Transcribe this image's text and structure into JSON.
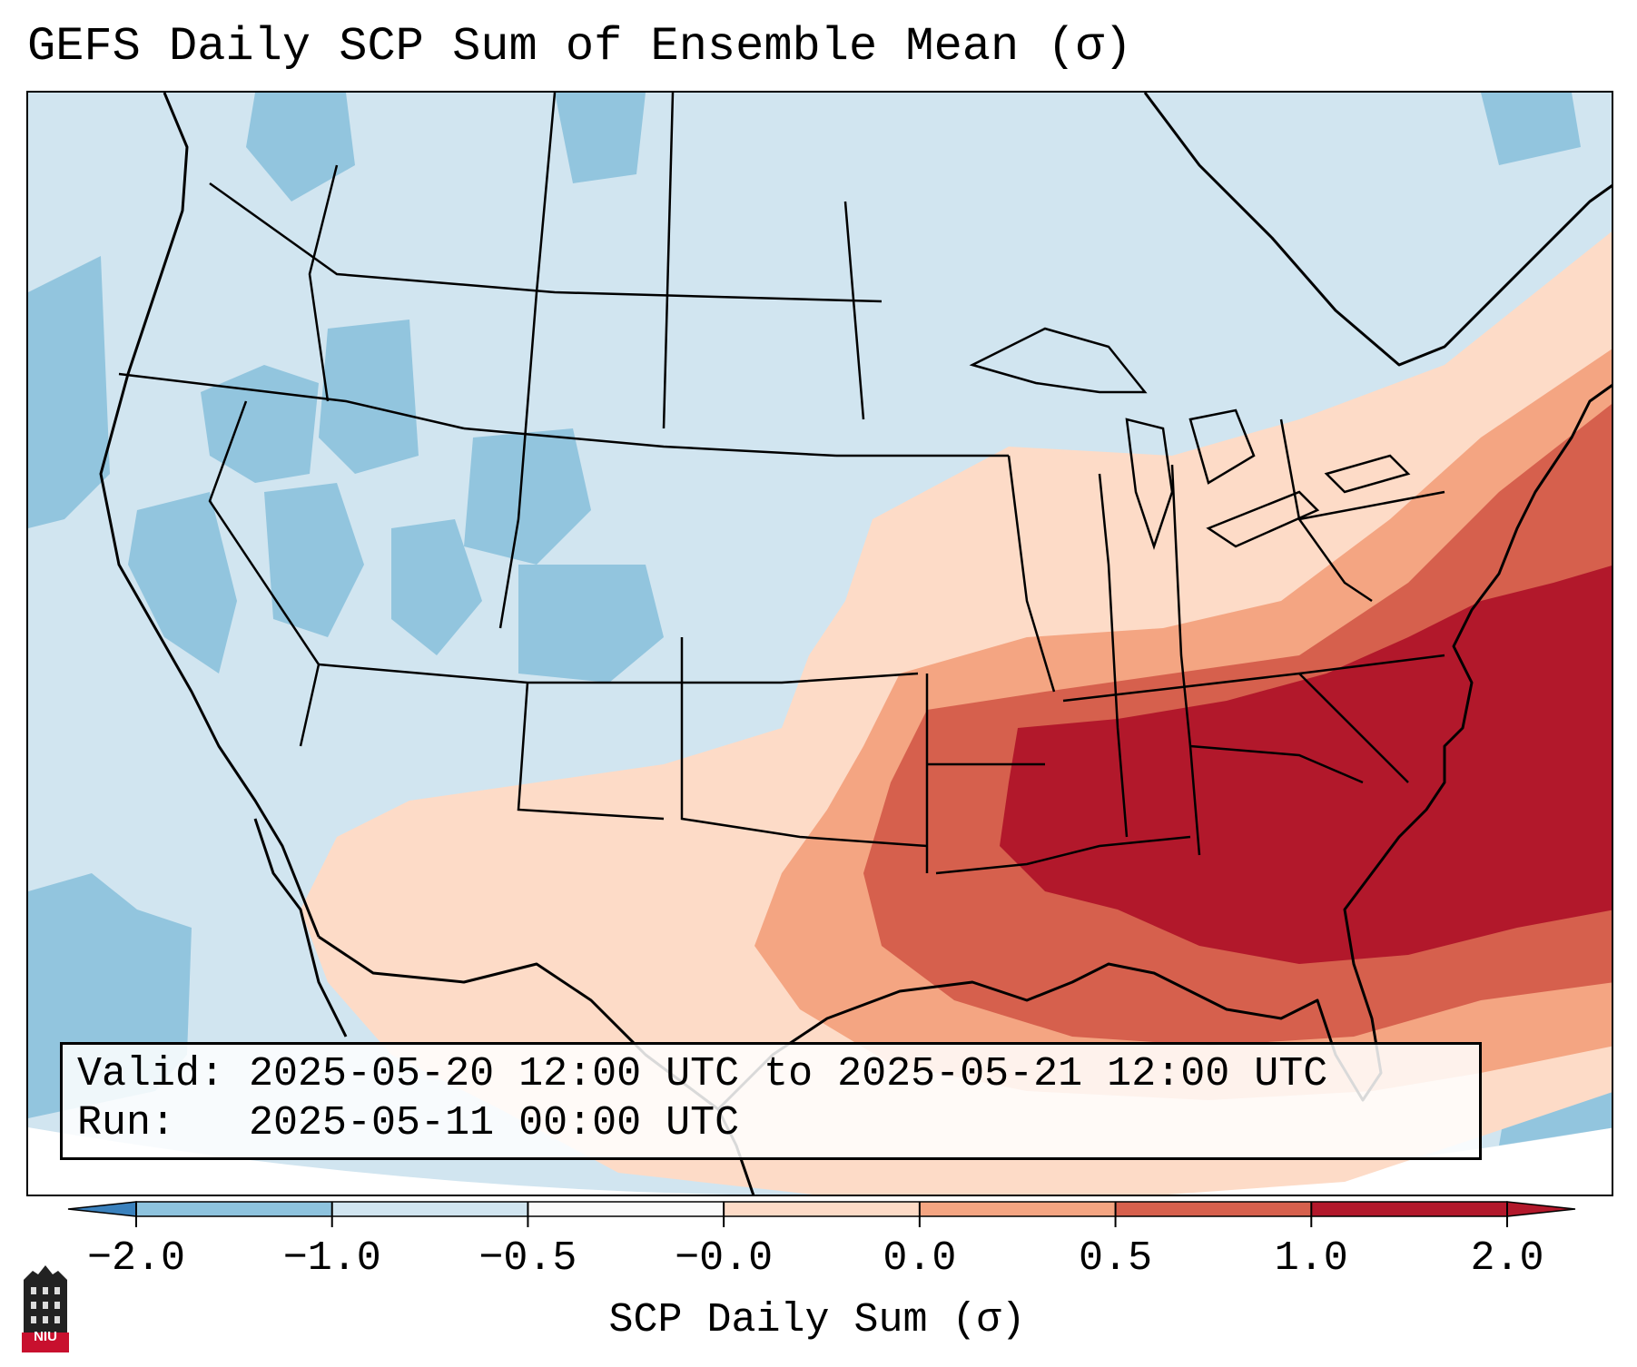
{
  "title": "GEFS Daily SCP Sum of Ensemble Mean (σ)",
  "info": {
    "valid_line": "Valid: 2025-05-20 12:00 UTC to 2025-05-21 12:00 UTC",
    "run_line": "Run:   2025-05-11 00:00 UTC"
  },
  "colorbar": {
    "label": "SCP Daily Sum (σ)",
    "ticks": [
      "−2.0",
      "−1.0",
      "−0.5",
      "−0.0",
      "0.0",
      "0.5",
      "1.0",
      "2.0"
    ],
    "colors": [
      "#3a81bd",
      "#8ec3de",
      "#d1e5f0",
      "#f9f9f9",
      "#fddbc7",
      "#f4a582",
      "#d6604d",
      "#b2182b"
    ]
  },
  "map": {
    "region": "Contiguous United States",
    "field_colors": {
      "background": "#d1e5f0",
      "moderate_negative": "#92c5de",
      "strong_negative": "#4393c3",
      "weak_positive": "#fddbc7",
      "moderate_positive": "#f4a582",
      "strong_positive": "#d6604d",
      "very_strong_positive": "#b2182b"
    }
  },
  "logo": {
    "text": "NIU"
  }
}
